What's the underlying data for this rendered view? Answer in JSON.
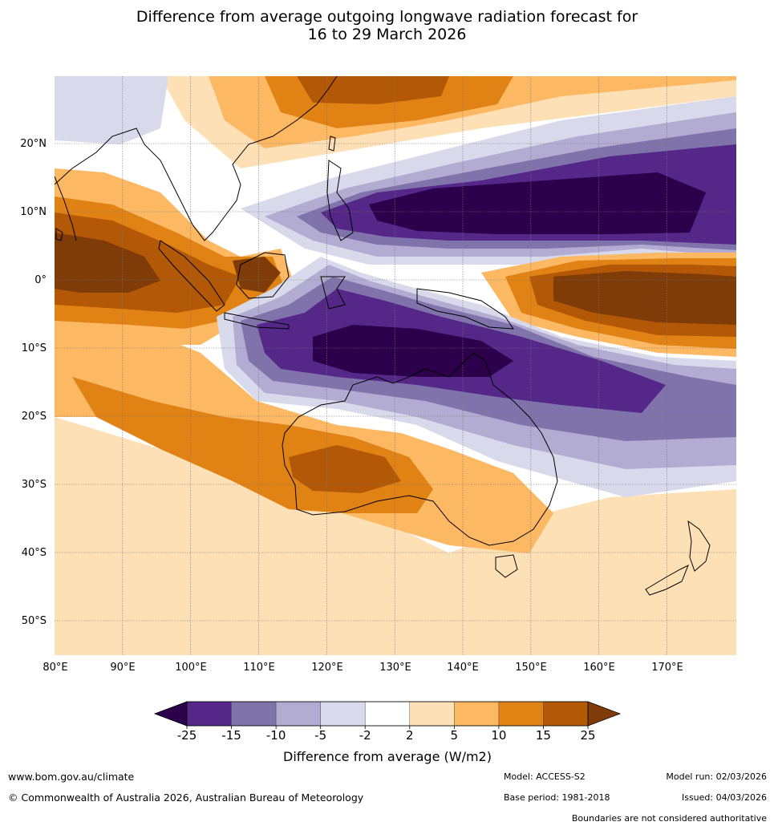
{
  "title": {
    "line1": "Difference from average outgoing longwave radiation forecast for",
    "line2": "16 to 29 March 2026"
  },
  "map": {
    "lat_labels": [
      "20°N",
      "10°N",
      "0°",
      "10°S",
      "20°S",
      "30°S",
      "40°S",
      "50°S"
    ],
    "lon_labels": [
      "80°E",
      "90°E",
      "100°E",
      "110°E",
      "120°E",
      "130°E",
      "140°E",
      "150°E",
      "160°E",
      "170°E"
    ],
    "regions": {
      "australia": "Australia",
      "new_zealand": "New Zealand",
      "maritime_continent": "Maritime Continent"
    }
  },
  "colorbar": {
    "ticks": [
      "-25",
      "-15",
      "-10",
      "-5",
      "-2",
      "2",
      "5",
      "10",
      "15",
      "25"
    ],
    "colors": [
      "#542788",
      "#8073ac",
      "#b2abd2",
      "#d8daeb",
      "#ffffff",
      "#fee0b6",
      "#fdb863",
      "#e08214",
      "#b35806"
    ],
    "under_color": "#2d004b",
    "over_color": "#7f3b08",
    "label": "Difference from average (W/m2)"
  },
  "footer": {
    "website": "www.bom.gov.au/climate",
    "copyright": "© Commonwealth of Australia 2026, Australian Bureau of Meteorology",
    "model": "Model: ACCESS-S2",
    "base_period": "Base period: 1981-2018",
    "model_run": "Model run: 02/03/2026",
    "issued": "Issued: 04/03/2026",
    "disclaimer": "Boundaries are not considered authoritative"
  }
}
